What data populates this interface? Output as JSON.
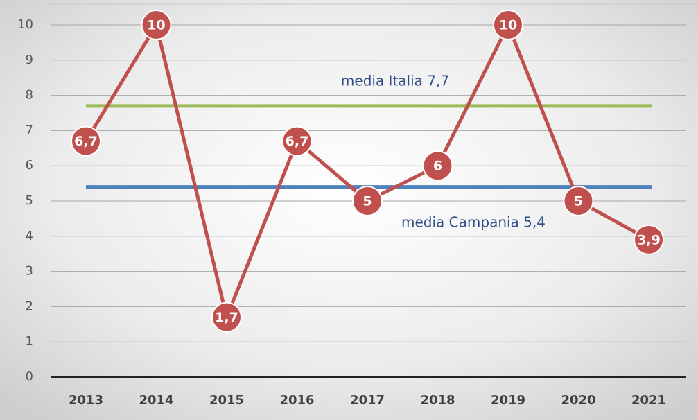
{
  "chart_data": {
    "type": "line",
    "categories": [
      "2013",
      "2014",
      "2015",
      "2016",
      "2017",
      "2018",
      "2019",
      "2020",
      "2021"
    ],
    "series": [
      {
        "color": "#c0504d",
        "values": [
          6.7,
          10,
          1.7,
          6.7,
          5,
          6,
          10,
          5,
          3.9
        ],
        "value_labels": [
          "6,7",
          "10",
          "1,7",
          "6,7",
          "5",
          "6",
          "10",
          "5",
          "3,9"
        ]
      }
    ],
    "reference_lines": [
      {
        "label": "media Italia 7,7",
        "value": 7.7,
        "color": "#9bbb59"
      },
      {
        "label": "media Campania 5,4",
        "value": 5.4,
        "color": "#4f81bd"
      }
    ],
    "ylim": [
      0,
      10
    ],
    "yticks": [
      0,
      1,
      2,
      3,
      4,
      5,
      6,
      7,
      8,
      9,
      10
    ],
    "grid": true
  }
}
